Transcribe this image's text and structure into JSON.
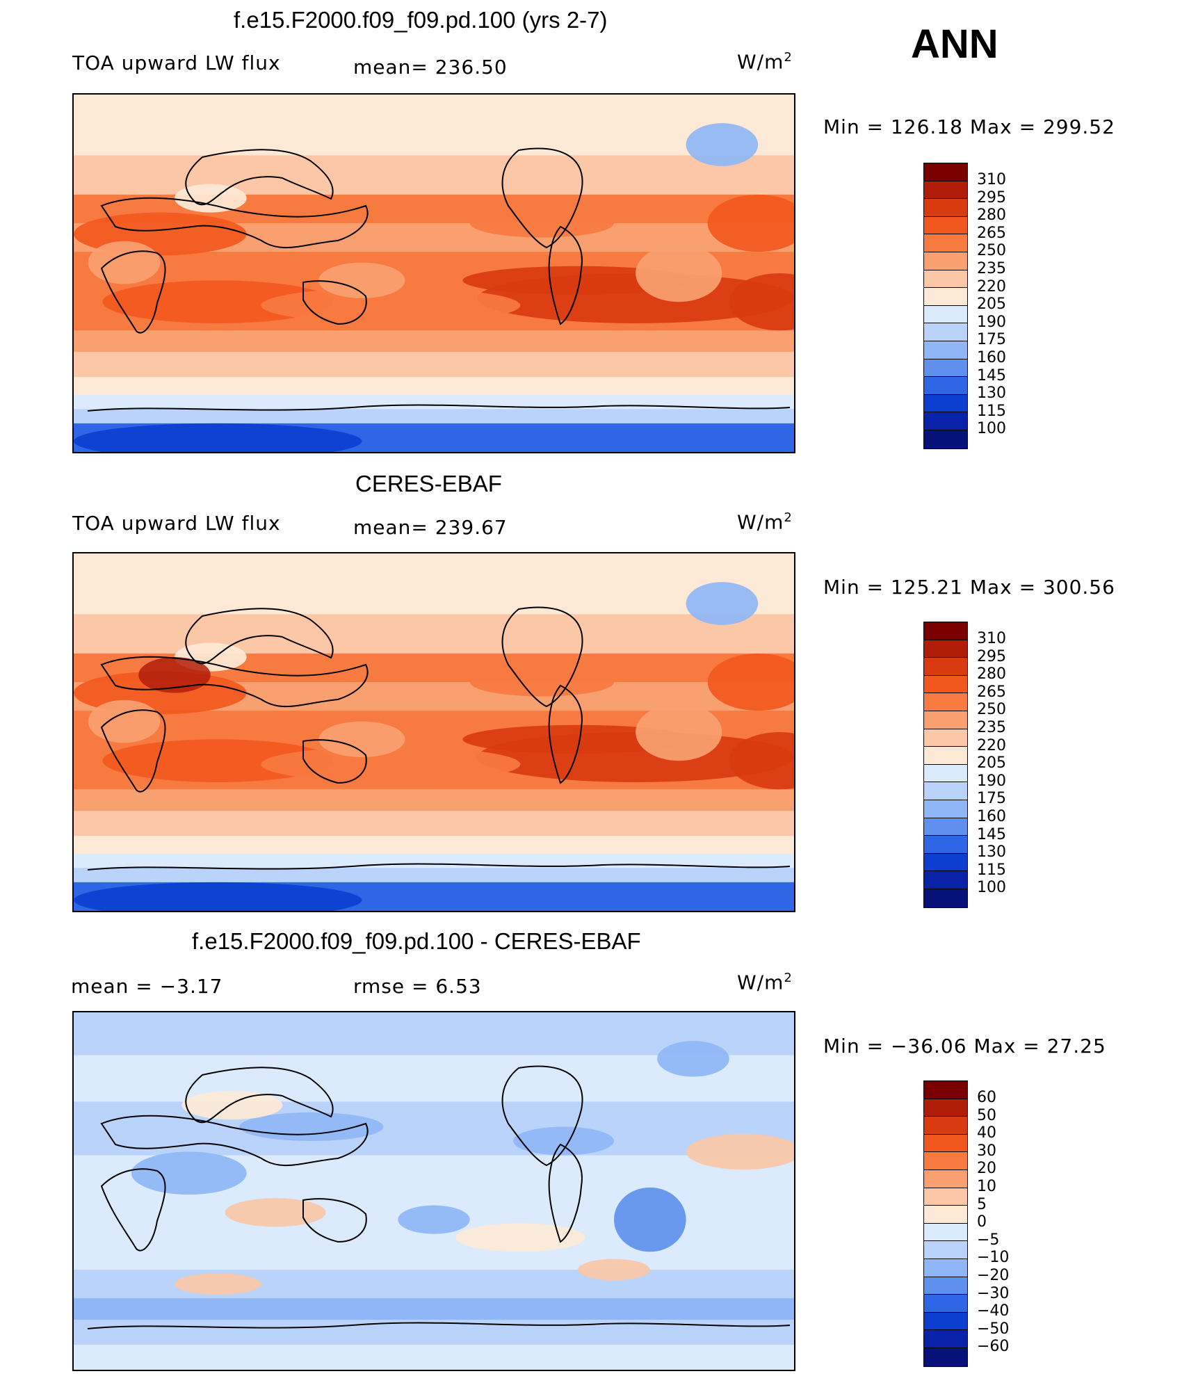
{
  "season": "ANN",
  "units": "W/m",
  "units_exp": "2",
  "panels": [
    {
      "title": "f.e15.F2000.f09_f09.pd.100 (yrs 2-7)",
      "variable": "TOA upward LW flux",
      "stat": "mean=  236.50",
      "minmax": "Min  =  126.18  Max  =  299.52",
      "field": "model"
    },
    {
      "title": "CERES-EBAF",
      "variable": "TOA upward LW flux",
      "stat": "mean=  239.67",
      "minmax": "Min  =  125.21  Max  =  300.56",
      "field": "obs"
    },
    {
      "title": "f.e15.F2000.f09_f09.pd.100 - CERES-EBAF",
      "variable": "mean  =    −3.17",
      "stat": "rmse  =     6.53",
      "minmax": "Min  =  −36.06  Max  =    27.25",
      "field": "diff"
    }
  ],
  "colorbars": {
    "abs_levels": [
      "310",
      "295",
      "280",
      "265",
      "250",
      "235",
      "220",
      "205",
      "190",
      "175",
      "160",
      "145",
      "130",
      "115",
      "100"
    ],
    "diff_levels": [
      "60",
      "50",
      "40",
      "30",
      "20",
      "10",
      "5",
      "0",
      "−5",
      "−10",
      "−20",
      "−30",
      "−40",
      "−50",
      "−60"
    ],
    "colors": [
      "#7a0000",
      "#b01e0a",
      "#d93a10",
      "#f2581e",
      "#f77a40",
      "#f9a070",
      "#fbc7a6",
      "#fde9d6",
      "#dbeafc",
      "#b9d3fa",
      "#8fb6f6",
      "#5f90ee",
      "#2f66e6",
      "#0c3fd0",
      "#0a22a8",
      "#06127a"
    ]
  }
}
